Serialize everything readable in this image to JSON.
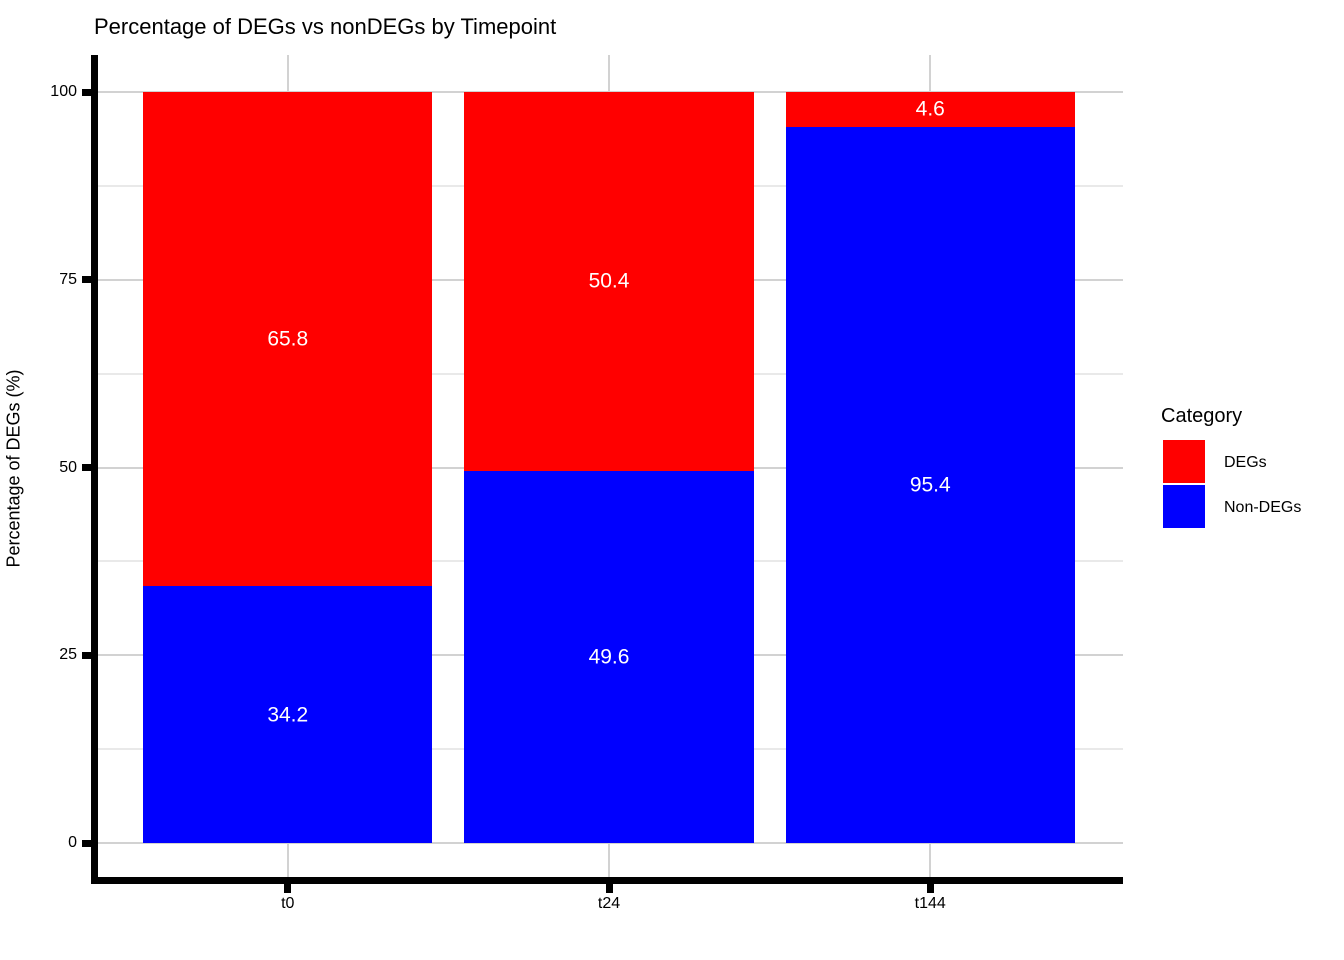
{
  "title": "Percentage of DEGs vs nonDEGs by Timepoint",
  "chart_data": {
    "type": "bar",
    "stacked": true,
    "title": "Percentage of DEGs vs nonDEGs by Timepoint",
    "xlabel": "",
    "ylabel": "Percentage of DEGs (%)",
    "categories": [
      "t0",
      "t24",
      "t144"
    ],
    "series": [
      {
        "name": "DEGs",
        "color": "#ff0000",
        "values": [
          65.8,
          50.4,
          4.6
        ]
      },
      {
        "name": "Non-DEGs",
        "color": "#0000ff",
        "values": [
          34.2,
          49.6,
          95.4
        ]
      }
    ],
    "ylim": [
      0,
      100
    ],
    "yticks": [
      0,
      25,
      50,
      75,
      100
    ],
    "minor_yticks": [
      12.5,
      37.5,
      62.5,
      87.5
    ],
    "grid": "horizontal major+minor, vertical major at categories",
    "bar_labels_color": "#ffffff",
    "legend": {
      "title": "Category",
      "position": "right",
      "entries": [
        {
          "label": "DEGs",
          "color": "#ff0000"
        },
        {
          "label": "Non-DEGs",
          "color": "#0000ff"
        }
      ]
    }
  }
}
